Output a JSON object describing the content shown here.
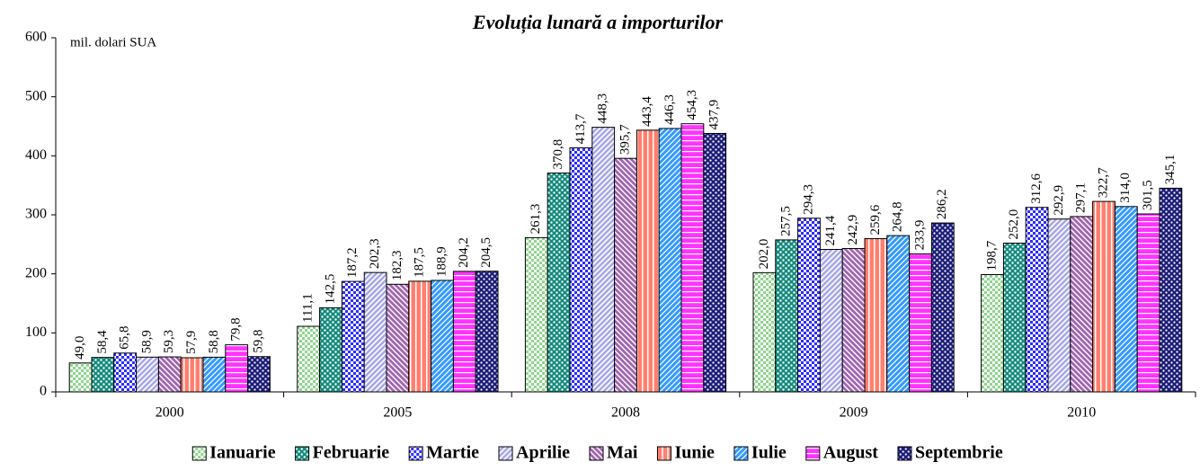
{
  "chart_data": {
    "type": "bar",
    "title": "Evoluția lunară a importurilor",
    "annotation": "mil. dolari SUA",
    "categories": [
      "2000",
      "2005",
      "2008",
      "2009",
      "2010"
    ],
    "ylim": [
      0,
      600
    ],
    "yticks": [
      0,
      100,
      200,
      300,
      400,
      500,
      600
    ],
    "legend": "bottom",
    "series": [
      {
        "name": "Ianuarie",
        "color": "#8fd48f",
        "values": [
          49.0,
          111.1,
          261.3,
          202.0,
          198.7
        ],
        "value_labels": [
          "49,0",
          "111,1",
          "261,3",
          "202,0",
          "198,7"
        ]
      },
      {
        "name": "Februarie",
        "color": "#138a7c",
        "values": [
          58.4,
          142.5,
          370.8,
          257.5,
          252.0
        ],
        "value_labels": [
          "58,4",
          "142,5",
          "370,8",
          "257,5",
          "252,0"
        ]
      },
      {
        "name": "Martie",
        "color": "#2b2bff",
        "values": [
          65.8,
          187.2,
          413.7,
          294.3,
          312.6
        ],
        "value_labels": [
          "65,8",
          "187,2",
          "413,7",
          "294,3",
          "312,6"
        ]
      },
      {
        "name": "Aprilie",
        "color": "#a8a8e8",
        "values": [
          58.9,
          202.3,
          448.3,
          241.4,
          292.9
        ],
        "value_labels": [
          "58,9",
          "202,3",
          "448,3",
          "241,4",
          "292,9"
        ]
      },
      {
        "name": "Mai",
        "color": "#a066b0",
        "values": [
          59.3,
          182.3,
          395.7,
          242.9,
          297.1
        ],
        "value_labels": [
          "59,3",
          "182,3",
          "395,7",
          "242,9",
          "297,1"
        ]
      },
      {
        "name": "Iunie",
        "color": "#ff7f6e",
        "values": [
          57.9,
          187.5,
          443.4,
          259.6,
          322.7
        ],
        "value_labels": [
          "57,9",
          "187,5",
          "443,4",
          "259,6",
          "322,7"
        ]
      },
      {
        "name": "Iulie",
        "color": "#3399ff",
        "values": [
          58.8,
          188.9,
          446.3,
          264.8,
          314.0
        ],
        "value_labels": [
          "58,8",
          "188,9",
          "446,3",
          "264,8",
          "314,0"
        ]
      },
      {
        "name": "August",
        "color": "#ff33ff",
        "values": [
          79.8,
          204.2,
          454.3,
          233.9,
          301.5
        ],
        "value_labels": [
          "79,8",
          "204,2",
          "454,3",
          "233,9",
          "301,5"
        ]
      },
      {
        "name": "Septembrie",
        "color": "#1c1c7a",
        "values": [
          59.8,
          204.5,
          437.9,
          286.2,
          345.1
        ],
        "value_labels": [
          "59,8",
          "204,5",
          "437,9",
          "286,2",
          "345,1"
        ]
      }
    ]
  }
}
